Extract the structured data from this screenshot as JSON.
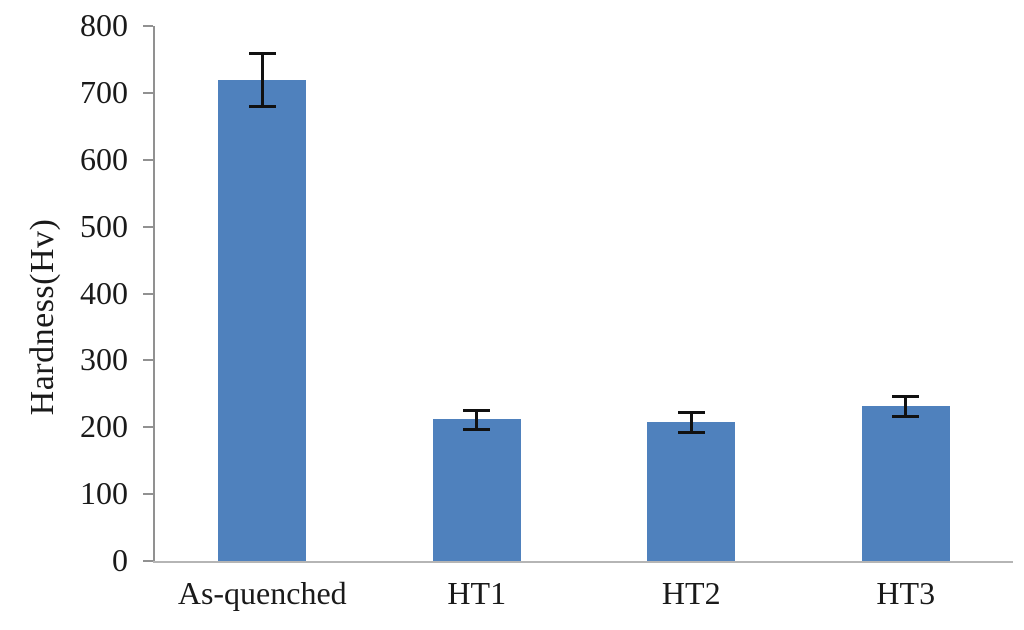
{
  "chart_data": {
    "type": "bar",
    "title": "",
    "xlabel": "",
    "ylabel": "Hardness(Hv)",
    "categories": [
      "As-quenched",
      "HT1",
      "HT2",
      "HT3"
    ],
    "values": [
      720,
      212,
      208,
      232
    ],
    "errors": [
      38,
      13,
      13,
      13
    ],
    "ylim": [
      0,
      800
    ],
    "yticks": [
      0,
      100,
      200,
      300,
      400,
      500,
      600,
      700,
      800
    ],
    "grid": false,
    "legend": false,
    "bar_color": "#4F81BD",
    "yaxis_color": "#919191",
    "xaxis_color": "#B5B5B5",
    "error_bar_color": "#111111",
    "text_color": "#1A1A1A"
  }
}
